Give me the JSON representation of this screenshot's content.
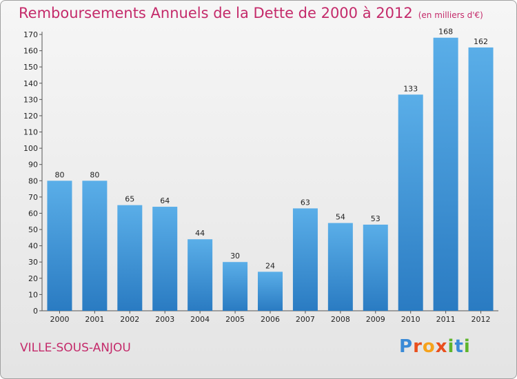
{
  "header": {
    "title": "Remboursements Annuels de la Dette de 2000 à 2012",
    "unit": "(en milliers d'€)"
  },
  "footer": {
    "town": "VILLE-SOUS-ANJOU",
    "logo": [
      "P",
      "r",
      "o",
      "x",
      "i",
      "t",
      "i"
    ]
  },
  "colors": {
    "title": "#c42a6a",
    "bar_top": "#5aaee8",
    "bar_bottom": "#2a7bc2",
    "logo": [
      "#3a8ad6",
      "#e94f1d",
      "#f6a21b",
      "#e94f1d",
      "#5fb52b",
      "#3a8ad6",
      "#5fb52b"
    ]
  },
  "chart_data": {
    "type": "bar",
    "title": "Remboursements Annuels de la Dette de 2000 à 2012",
    "categories": [
      "2000",
      "2001",
      "2002",
      "2003",
      "2004",
      "2005",
      "2006",
      "2007",
      "2008",
      "2009",
      "2010",
      "2011",
      "2012"
    ],
    "values": [
      80,
      80,
      65,
      64,
      44,
      30,
      24,
      63,
      54,
      53,
      133,
      168,
      162
    ],
    "ylim": [
      0,
      170
    ],
    "yticks": [
      0,
      10,
      20,
      30,
      40,
      50,
      60,
      70,
      80,
      90,
      100,
      110,
      120,
      130,
      140,
      150,
      160,
      170
    ],
    "grid": false,
    "xlabel": "",
    "ylabel": ""
  }
}
